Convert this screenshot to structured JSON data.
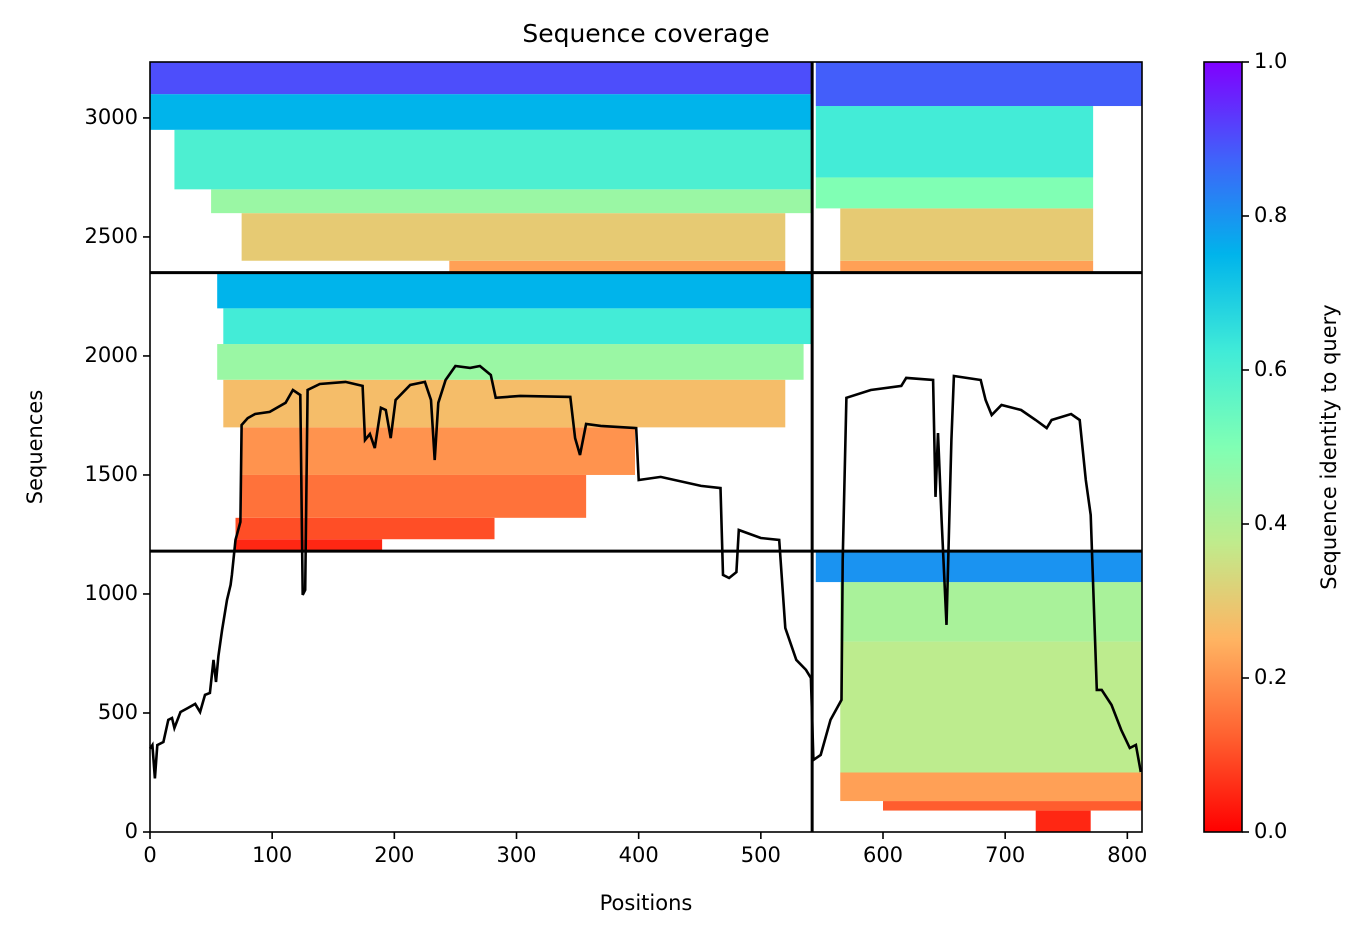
{
  "chart_data": {
    "type": "coverage",
    "title": "Sequence coverage",
    "xlabel": "Positions",
    "ylabel": "Sequences",
    "xlim": [
      0,
      812
    ],
    "ylim": [
      0,
      3235
    ],
    "xticks": [
      0,
      100,
      200,
      300,
      400,
      500,
      600,
      700,
      800
    ],
    "yticks": [
      0,
      500,
      1000,
      1500,
      2000,
      2500,
      3000
    ],
    "line_color": "#000000",
    "x": [
      0,
      2,
      4,
      6,
      11,
      15,
      18,
      20,
      25,
      31,
      37,
      41,
      45,
      49,
      52,
      54,
      56,
      59,
      63,
      66,
      67,
      70,
      74,
      75,
      80,
      86,
      98,
      111,
      117,
      123,
      125,
      127,
      129,
      139,
      160,
      174,
      176,
      180,
      184,
      189,
      193,
      197,
      201,
      213,
      225,
      230,
      233,
      236,
      242,
      250,
      262,
      270,
      279,
      283,
      303,
      344,
      348,
      352,
      357,
      369,
      398,
      400,
      418,
      451,
      467,
      469,
      474,
      480,
      482,
      500,
      515,
      520,
      529,
      537,
      541,
      543,
      549,
      557,
      566,
      567,
      570,
      590,
      615,
      619,
      641,
      643,
      645,
      648,
      652,
      656,
      658,
      680,
      684,
      689,
      697,
      713,
      725,
      734,
      738,
      754,
      761,
      766,
      770,
      775,
      779,
      787,
      795,
      802,
      807,
      811
    ],
    "coverage": [
      350,
      365,
      225,
      365,
      378,
      471,
      479,
      437,
      504,
      521,
      538,
      504,
      576,
      584,
      723,
      630,
      739,
      849,
      975,
      1038,
      1080,
      1227,
      1303,
      1710,
      1739,
      1756,
      1765,
      1803,
      1857,
      1836,
      996,
      1017,
      1857,
      1882,
      1891,
      1874,
      1647,
      1672,
      1613,
      1782,
      1773,
      1655,
      1815,
      1878,
      1891,
      1815,
      1563,
      1803,
      1899,
      1958,
      1950,
      1958,
      1920,
      1824,
      1832,
      1828,
      1655,
      1584,
      1714,
      1706,
      1697,
      1479,
      1492,
      1454,
      1445,
      1080,
      1067,
      1092,
      1269,
      1235,
      1227,
      857,
      723,
      681,
      647,
      303,
      324,
      471,
      555,
      1143,
      1824,
      1857,
      1874,
      1908,
      1899,
      1408,
      1676,
      1311,
      870,
      1647,
      1916,
      1899,
      1815,
      1752,
      1794,
      1773,
      1731,
      1697,
      1731,
      1756,
      1731,
      1479,
      1332,
      597,
      597,
      534,
      429,
      353,
      366,
      252
    ],
    "dividers_x": [
      542
    ],
    "dividers_y": [
      1180,
      2350
    ],
    "blocks": [
      {
        "x0": 70,
        "x1": 190,
        "y0": 1180,
        "y1": 1230,
        "identity": 0.05
      },
      {
        "x0": 70,
        "x1": 282,
        "y0": 1230,
        "y1": 1320,
        "identity": 0.1
      },
      {
        "x0": 75,
        "x1": 357,
        "y0": 1320,
        "y1": 1500,
        "identity": 0.15
      },
      {
        "x0": 75,
        "x1": 397,
        "y0": 1500,
        "y1": 1700,
        "identity": 0.2
      },
      {
        "x0": 60,
        "x1": 520,
        "y0": 1700,
        "y1": 1900,
        "identity": 0.27
      },
      {
        "x0": 55,
        "x1": 535,
        "y0": 1900,
        "y1": 2050,
        "identity": 0.45
      },
      {
        "x0": 60,
        "x1": 542,
        "y0": 2050,
        "y1": 2200,
        "identity": 0.62
      },
      {
        "x0": 55,
        "x1": 542,
        "y0": 2200,
        "y1": 2350,
        "identity": 0.75
      },
      {
        "x0": 245,
        "x1": 520,
        "y0": 2350,
        "y1": 2400,
        "identity": 0.22
      },
      {
        "x0": 75,
        "x1": 520,
        "y0": 2400,
        "y1": 2600,
        "identity": 0.3
      },
      {
        "x0": 50,
        "x1": 542,
        "y0": 2600,
        "y1": 2700,
        "identity": 0.45
      },
      {
        "x0": 20,
        "x1": 542,
        "y0": 2700,
        "y1": 2950,
        "identity": 0.6
      },
      {
        "x0": 0,
        "x1": 542,
        "y0": 2950,
        "y1": 3100,
        "identity": 0.75
      },
      {
        "x0": 0,
        "x1": 542,
        "y0": 3100,
        "y1": 3235,
        "identity": 0.9
      },
      {
        "x0": 565,
        "x1": 772,
        "y0": 2350,
        "y1": 2400,
        "identity": 0.22
      },
      {
        "x0": 565,
        "x1": 772,
        "y0": 2400,
        "y1": 2620,
        "identity": 0.3
      },
      {
        "x0": 545,
        "x1": 772,
        "y0": 2620,
        "y1": 2750,
        "identity": 0.5
      },
      {
        "x0": 545,
        "x1": 772,
        "y0": 2750,
        "y1": 3050,
        "identity": 0.62
      },
      {
        "x0": 545,
        "x1": 812,
        "y0": 3050,
        "y1": 3235,
        "identity": 0.88
      },
      {
        "x0": 725,
        "x1": 770,
        "y0": 0,
        "y1": 90,
        "identity": 0.05
      },
      {
        "x0": 600,
        "x1": 812,
        "y0": 90,
        "y1": 130,
        "identity": 0.12
      },
      {
        "x0": 565,
        "x1": 812,
        "y0": 130,
        "y1": 250,
        "identity": 0.22
      },
      {
        "x0": 565,
        "x1": 812,
        "y0": 250,
        "y1": 800,
        "identity": 0.38
      },
      {
        "x0": 565,
        "x1": 812,
        "y0": 800,
        "y1": 1050,
        "identity": 0.42
      },
      {
        "x0": 545,
        "x1": 812,
        "y0": 1050,
        "y1": 1180,
        "identity": 0.8
      }
    ],
    "colorbar": {
      "label": "Sequence identity to query",
      "clim": [
        0,
        1
      ],
      "ticks": [
        {
          "value": 0,
          "label": "0.0"
        },
        0.2,
        0.4,
        0.6,
        0.8,
        {
          "value": 1,
          "label": "1.0"
        }
      ],
      "colormap": [
        "#ff0000",
        "#ff6130",
        "#ffb462",
        "#c0eb8c",
        "#80ffb4",
        "#40ebd8",
        "#00b4eb",
        "#4062fa",
        "#8000ff"
      ]
    }
  }
}
